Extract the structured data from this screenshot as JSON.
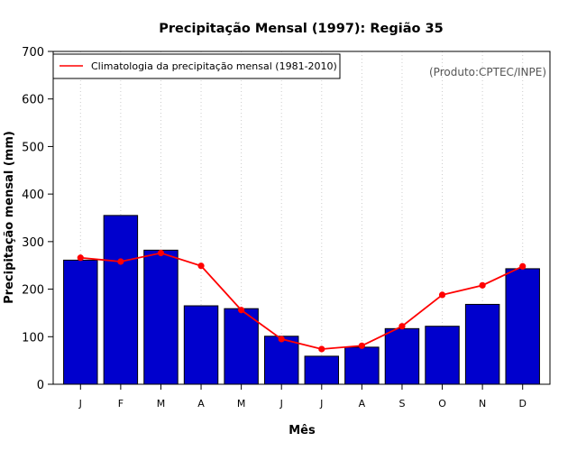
{
  "chart_data": {
    "type": "bar",
    "title": "Precipitação Mensal (1997): Região 35",
    "xlabel": "Mês",
    "ylabel": "Precipitação mensal (mm)",
    "categories": [
      "J",
      "F",
      "M",
      "A",
      "M",
      "J",
      "J",
      "A",
      "S",
      "O",
      "N",
      "D"
    ],
    "ylim": [
      0,
      700
    ],
    "yticks": [
      0,
      100,
      200,
      300,
      400,
      500,
      600,
      700
    ],
    "grid": "vertical dotted",
    "series": [
      {
        "name": "Precipitação mensal 1997",
        "type": "bar",
        "color": "#0000cd",
        "values": [
          261,
          355,
          282,
          165,
          159,
          101,
          59,
          78,
          117,
          122,
          168,
          243
        ]
      },
      {
        "name": "Climatologia da precipitação mensal (1981-2010)",
        "type": "line",
        "color": "#ff0000",
        "values": [
          266,
          258,
          276,
          249,
          156,
          95,
          74,
          81,
          122,
          188,
          208,
          248
        ]
      }
    ],
    "legend": {
      "position": "top-left",
      "entries": [
        "Climatologia da precipitação mensal (1981-2010)"
      ]
    },
    "annotation": "(Produto:CPTEC/INPE)"
  }
}
